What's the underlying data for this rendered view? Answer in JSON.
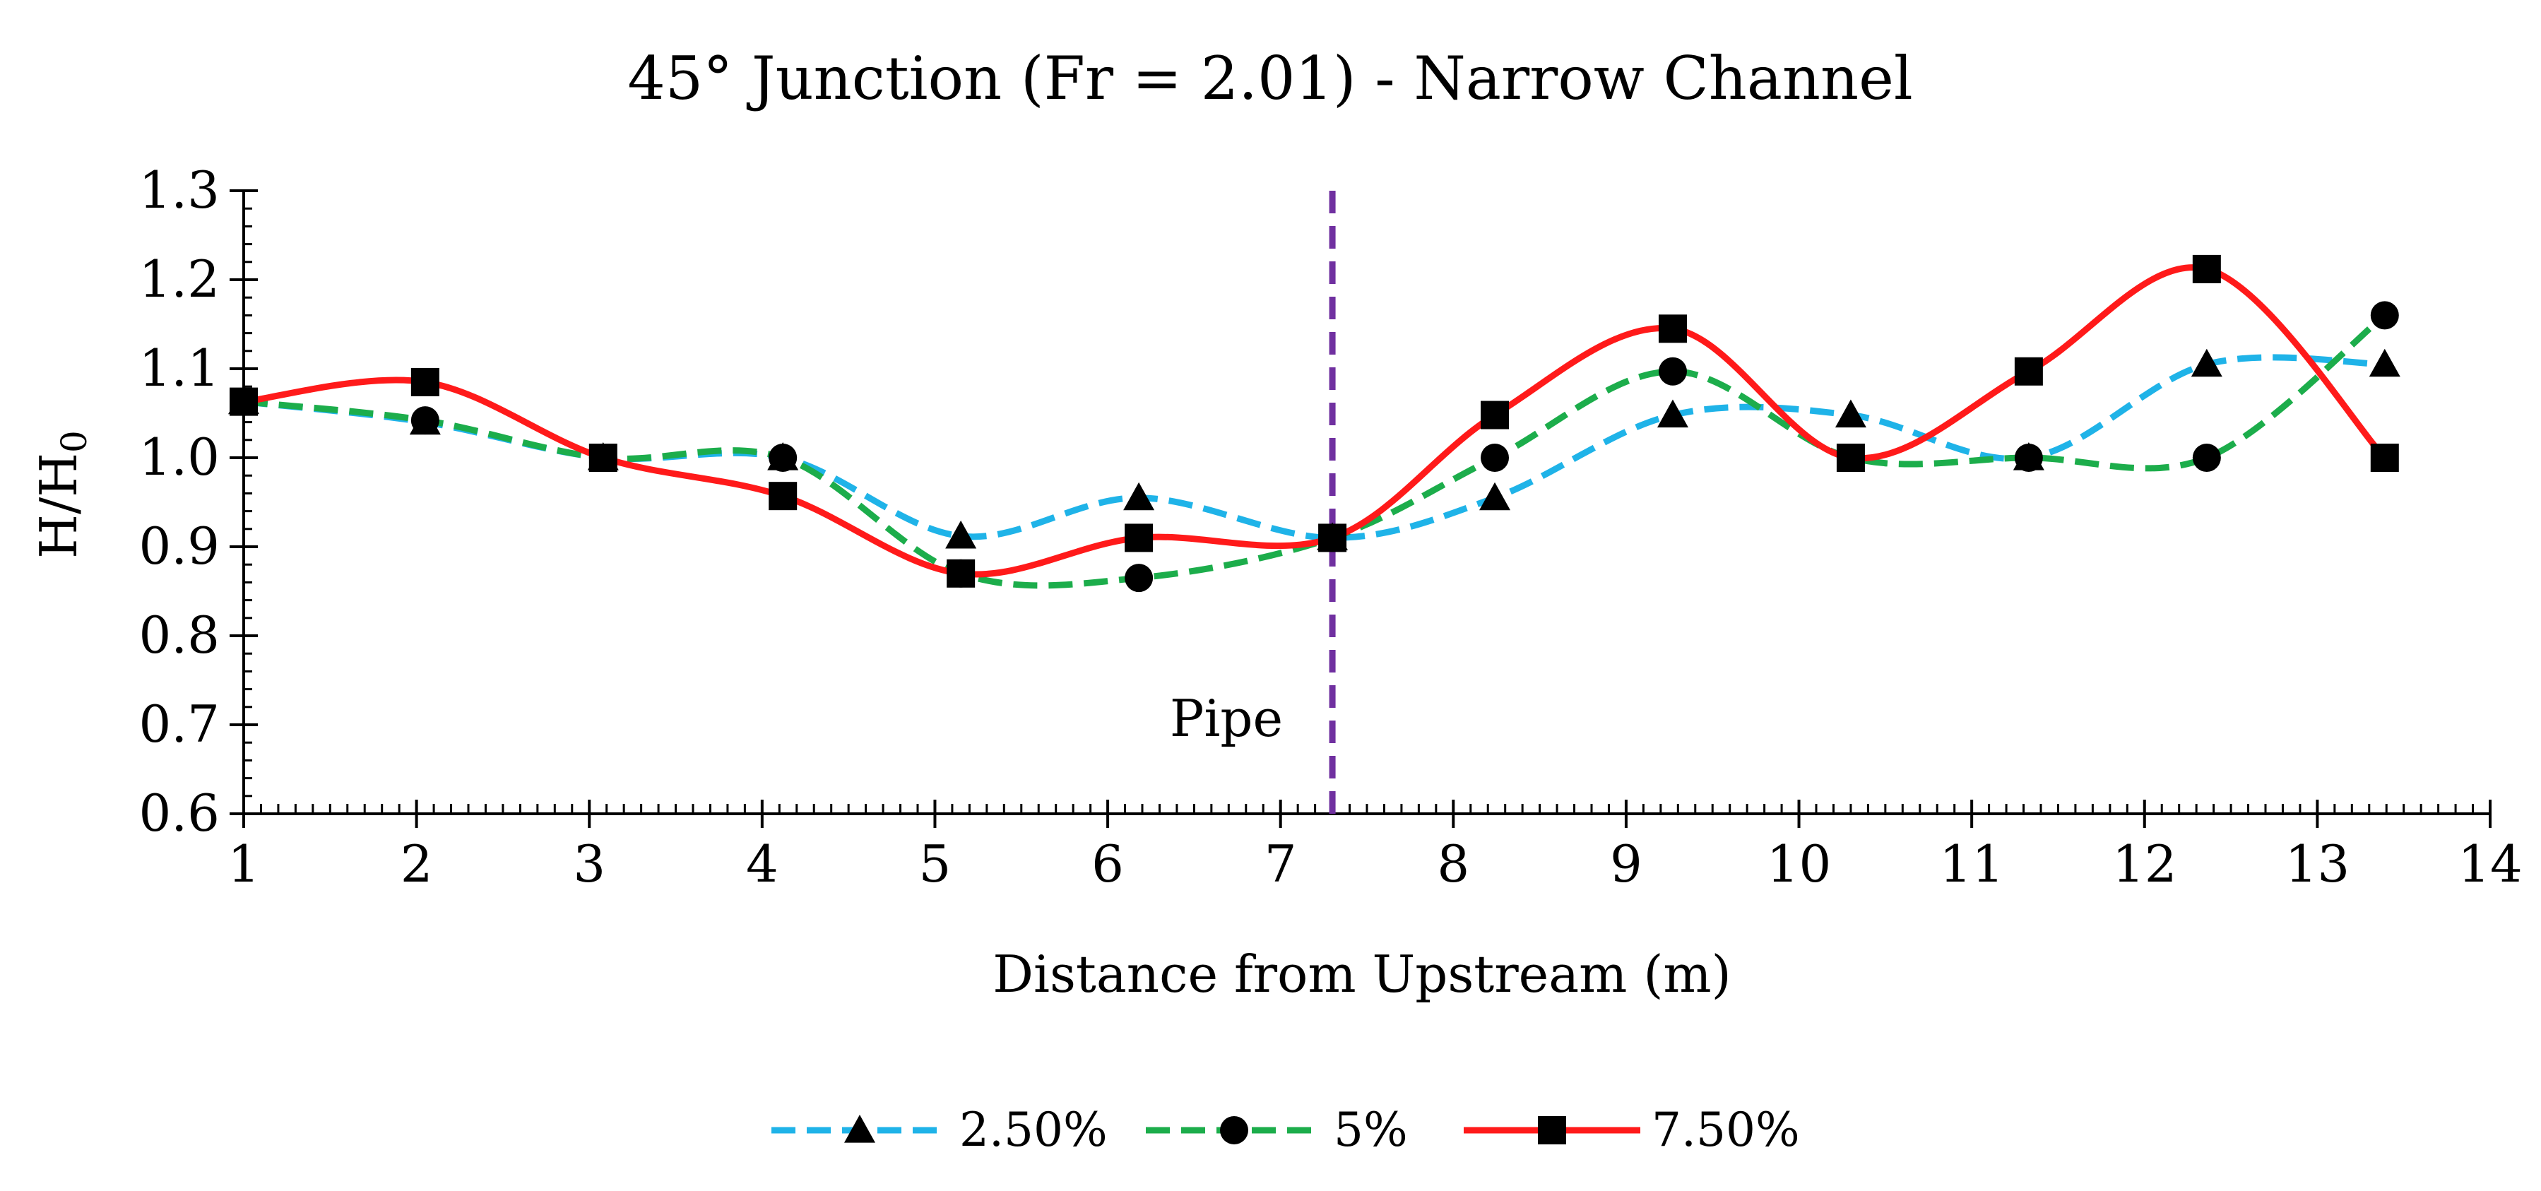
{
  "chart_data": {
    "type": "line",
    "title": "45° Junction (Fr = 2.01) - Narrow Channel",
    "xlabel": "Distance from Upstream (m)",
    "ylabel": "H/H",
    "ylabel_subscript": "0",
    "xlim": [
      1,
      14
    ],
    "ylim": [
      0.6,
      1.3
    ],
    "x_ticks": [
      "1",
      "2",
      "3",
      "4",
      "5",
      "6",
      "7",
      "8",
      "9",
      "10",
      "11",
      "12",
      "13",
      "14"
    ],
    "y_ticks": [
      "0.6",
      "0.7",
      "0.8",
      "0.9",
      "1.0",
      "1.1",
      "1.2",
      "1.3"
    ],
    "annotation": {
      "text": "Pipe",
      "x": 7.3
    },
    "legend_position": "bottom-center",
    "series": [
      {
        "name": "2.50%",
        "color": "#1fb3e8",
        "line": "dashed",
        "marker": "triangle",
        "x": [
          1.0,
          2.05,
          3.08,
          4.12,
          5.15,
          6.18,
          7.3,
          8.24,
          9.27,
          10.3,
          11.33,
          12.36,
          13.39
        ],
        "y": [
          1.063,
          1.04,
          1.0,
          1.0,
          0.912,
          0.955,
          0.91,
          0.955,
          1.048,
          1.048,
          1.0,
          1.105,
          1.105
        ]
      },
      {
        "name": "5%",
        "color": "#1cad4b",
        "line": "dashed",
        "marker": "circle",
        "x": [
          1.0,
          2.05,
          3.08,
          4.12,
          5.15,
          6.18,
          7.3,
          8.24,
          9.27,
          10.3,
          11.33,
          12.36,
          13.39
        ],
        "y": [
          1.063,
          1.042,
          1.0,
          1.0,
          0.87,
          0.865,
          0.91,
          1.0,
          1.097,
          1.0,
          1.0,
          1.0,
          1.16
        ]
      },
      {
        "name": "7.50%",
        "color": "#ff1a1a",
        "line": "solid",
        "marker": "square",
        "x": [
          1.0,
          2.05,
          3.08,
          4.12,
          5.15,
          6.18,
          7.3,
          8.24,
          9.27,
          10.3,
          11.33,
          12.36,
          13.39
        ],
        "y": [
          1.063,
          1.085,
          1.0,
          0.957,
          0.87,
          0.91,
          0.91,
          1.048,
          1.145,
          1.0,
          1.097,
          1.212,
          1.0
        ]
      }
    ],
    "pipe_line_color": "#7030a0"
  }
}
